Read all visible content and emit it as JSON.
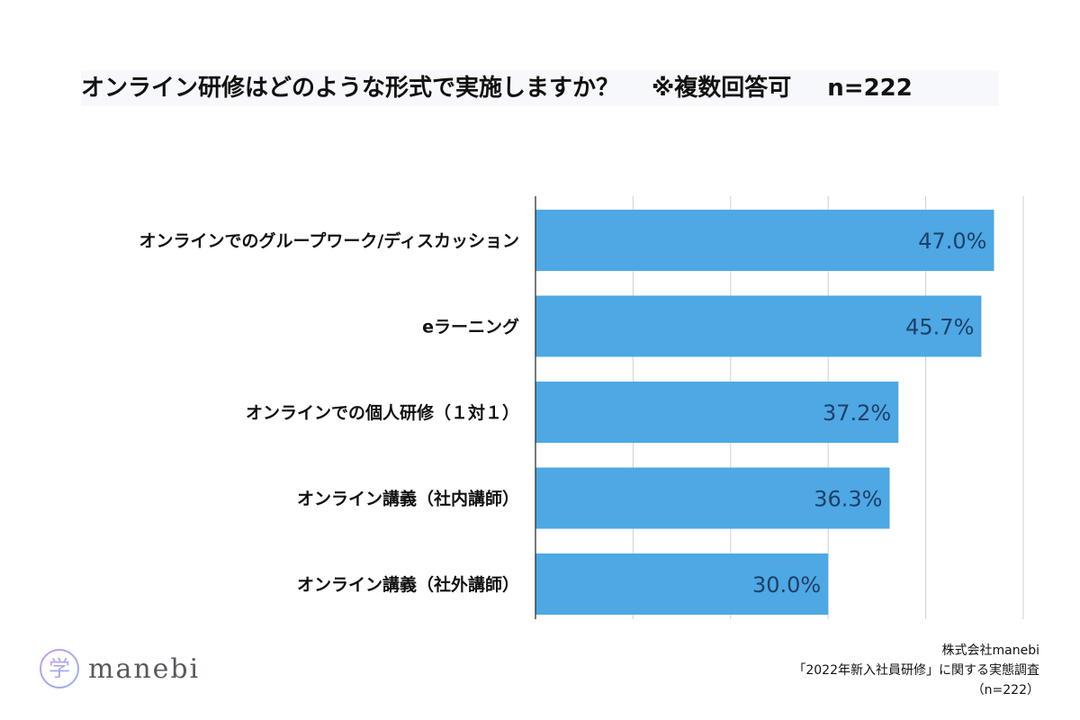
{
  "title": {
    "question": "オンライン研修はどのような形式で実施しますか？",
    "note": "※複数回答可",
    "n": "n=222"
  },
  "chart_data": {
    "type": "bar",
    "orientation": "horizontal",
    "title": "オンライン研修はどのような形式で実施しますか？ ※複数回答可 n=222",
    "categories": [
      "オンラインでのグループワーク/ディスカッション",
      "eラーニング",
      "オンラインでの個人研修（１対１）",
      "オンライン講義（社内講師）",
      "オンライン講義（社外講師）"
    ],
    "values": [
      47.0,
      45.7,
      37.2,
      36.3,
      30.0
    ],
    "value_labels": [
      "47.0%",
      "45.7%",
      "37.2%",
      "36.3%",
      "30.0%"
    ],
    "xlim": [
      0,
      50
    ],
    "grid_step": 10,
    "xlabel": "",
    "ylabel": "",
    "bar_color": "#4da8e4",
    "label_color": "#1f3f66",
    "grid": true
  },
  "logo": {
    "name": "manebi",
    "mark_char": "学"
  },
  "source": {
    "company": "株式会社manebi",
    "survey": "「2022年新入社員研修」に関する実態調査",
    "n": "（n=222）"
  }
}
